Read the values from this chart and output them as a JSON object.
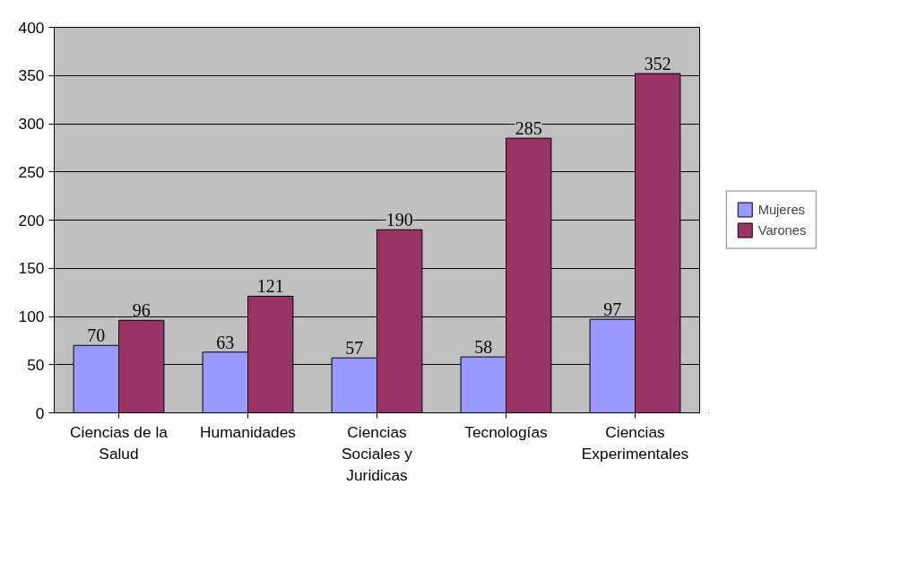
{
  "chart_data": {
    "type": "bar",
    "categories": [
      "Ciencias de la Salud",
      "Humanidades",
      "Ciencias Sociales y Juridicas",
      "Tecnologías",
      "Ciencias Experimentales"
    ],
    "series": [
      {
        "name": "Mujeres",
        "color": "#9999ff",
        "values": [
          70,
          63,
          57,
          58,
          97
        ]
      },
      {
        "name": "Varones",
        "color": "#993366",
        "values": [
          96,
          121,
          190,
          285,
          352
        ]
      }
    ],
    "ylim": [
      0,
      400
    ],
    "yticks": [
      0,
      50,
      100,
      150,
      200,
      250,
      300,
      350,
      400
    ],
    "grid": "y",
    "legend": "right",
    "data_labels": true
  }
}
